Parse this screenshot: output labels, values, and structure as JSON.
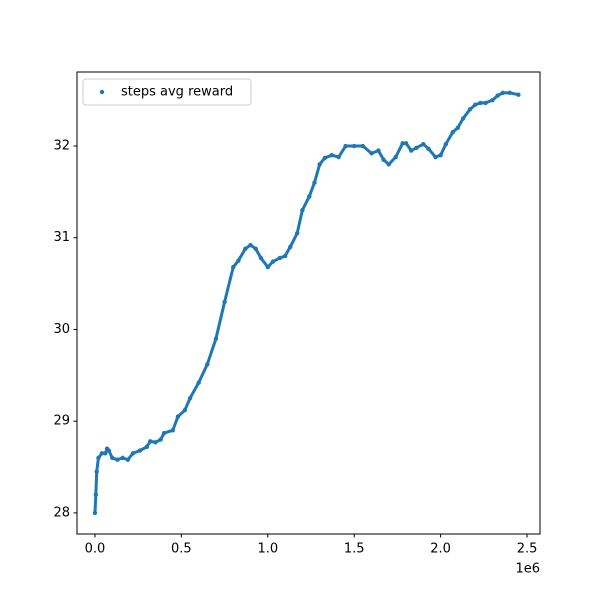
{
  "chart_data": {
    "type": "scatter",
    "series": [
      {
        "name": "steps avg reward",
        "color": "#1f77b4",
        "x": [
          0,
          5000,
          10000,
          20000,
          40000,
          60000,
          70000,
          80000,
          100000,
          130000,
          160000,
          190000,
          220000,
          260000,
          300000,
          320000,
          350000,
          380000,
          400000,
          450000,
          480000,
          520000,
          550000,
          600000,
          650000,
          700000,
          750000,
          800000,
          830000,
          870000,
          900000,
          930000,
          960000,
          1000000,
          1030000,
          1070000,
          1100000,
          1130000,
          1170000,
          1200000,
          1240000,
          1270000,
          1300000,
          1330000,
          1370000,
          1410000,
          1450000,
          1500000,
          1550000,
          1600000,
          1640000,
          1670000,
          1700000,
          1740000,
          1780000,
          1800000,
          1830000,
          1860000,
          1900000,
          1930000,
          1970000,
          2000000,
          2030000,
          2070000,
          2100000,
          2130000,
          2170000,
          2200000,
          2230000,
          2260000,
          2300000,
          2330000,
          2360000,
          2400000,
          2450000
        ],
        "values": [
          28.0,
          28.2,
          28.45,
          28.6,
          28.65,
          28.65,
          28.7,
          28.68,
          28.6,
          28.58,
          28.6,
          28.58,
          28.65,
          28.68,
          28.72,
          28.78,
          28.77,
          28.8,
          28.87,
          28.9,
          29.05,
          29.12,
          29.25,
          29.42,
          29.62,
          29.9,
          30.3,
          30.68,
          30.75,
          30.88,
          30.92,
          30.88,
          30.78,
          30.68,
          30.74,
          30.78,
          30.8,
          30.9,
          31.05,
          31.3,
          31.45,
          31.6,
          31.8,
          31.87,
          31.9,
          31.88,
          32.0,
          32.0,
          32.0,
          31.92,
          31.95,
          31.85,
          31.8,
          31.88,
          32.03,
          32.03,
          31.95,
          31.98,
          32.02,
          31.97,
          31.88,
          31.9,
          32.02,
          32.15,
          32.2,
          32.3,
          32.4,
          32.45,
          32.47,
          32.47,
          32.5,
          32.55,
          32.58,
          32.58,
          32.56
        ]
      }
    ],
    "xlim": [
      -104000,
      2575000
    ],
    "xticks": [
      {
        "value": 0,
        "label": "0.0"
      },
      {
        "value": 500000,
        "label": "0.5"
      },
      {
        "value": 1000000,
        "label": "1.0"
      },
      {
        "value": 1500000,
        "label": "1.5"
      },
      {
        "value": 2000000,
        "label": "2.0"
      },
      {
        "value": 2500000,
        "label": "2.5"
      }
    ],
    "x_offset_label": "1e6",
    "ylim": [
      27.77,
      32.807
    ],
    "yticks": [
      28,
      29,
      30,
      31,
      32
    ],
    "grid": false,
    "legend": "upper left"
  }
}
